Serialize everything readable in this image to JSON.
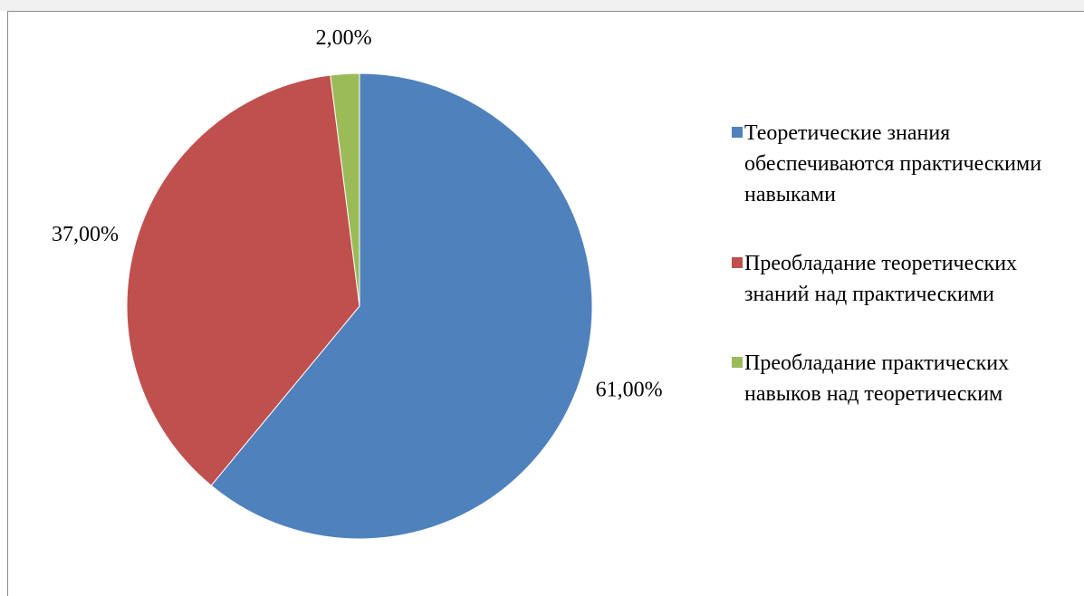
{
  "chart_data": {
    "type": "pie",
    "series": [
      {
        "name": "Теоретические знания обеспечиваются практическими навыками",
        "color": "#4f81bd"
      },
      {
        "name": "Преобладание теоретических знаний над практическими",
        "color": "#c0504d"
      },
      {
        "name": "Преобладание практических навыков над теоретическим",
        "color": "#9bbb59"
      }
    ],
    "values": [
      61,
      37,
      2
    ],
    "value_labels": [
      "61,00%",
      "37,00%",
      "2,00%"
    ]
  }
}
